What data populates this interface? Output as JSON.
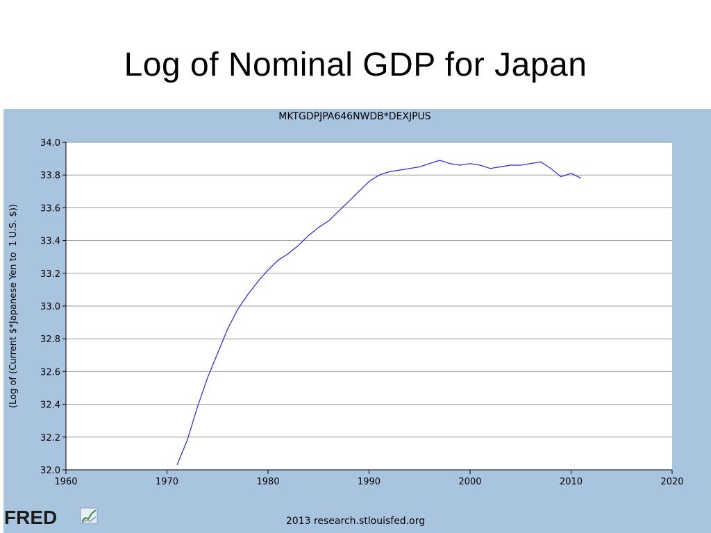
{
  "slide": {
    "title": "Log of Nominal GDP for Japan"
  },
  "branding": {
    "logo_text": "FRED",
    "logo_icon": "fred-chart-icon",
    "panel_color": "#a8c4de"
  },
  "footer": {
    "note": "2013 research.stlouisfed.org"
  },
  "chart_data": {
    "type": "line",
    "title": "MKTGDPJPA646NWDB*DEXJPUS",
    "xlabel": "",
    "ylabel": "(Log of (Current $*Japanese Yen to  1 U.S. $))",
    "xlim": [
      1960,
      2020
    ],
    "ylim": [
      32.0,
      34.0
    ],
    "xticks": [
      1960,
      1970,
      1980,
      1990,
      2000,
      2010,
      2020
    ],
    "yticks": [
      "32.0",
      "32.2",
      "32.4",
      "32.6",
      "32.8",
      "33.0",
      "33.2",
      "33.4",
      "33.6",
      "33.8",
      "34.0"
    ],
    "grid": "horizontal",
    "line_color": "#2222ee",
    "series": [
      {
        "x": [
          1971,
          1972,
          1973,
          1974,
          1975,
          1976,
          1977,
          1978,
          1979,
          1980,
          1981,
          1982,
          1983,
          1984,
          1985,
          1986,
          1987,
          1988,
          1989,
          1990,
          1991,
          1992,
          1993,
          1994,
          1995,
          1996,
          1997,
          1998,
          1999,
          2000,
          2001,
          2002,
          2003,
          2004,
          2005,
          2006,
          2007,
          2008,
          2009,
          2010,
          2011
        ],
        "y": [
          32.03,
          32.18,
          32.38,
          32.56,
          32.71,
          32.86,
          32.98,
          33.07,
          33.15,
          33.22,
          33.28,
          33.32,
          33.37,
          33.43,
          33.48,
          33.52,
          33.58,
          33.64,
          33.7,
          33.76,
          33.8,
          33.82,
          33.83,
          33.84,
          33.85,
          33.87,
          33.89,
          33.87,
          33.86,
          33.87,
          33.86,
          33.84,
          33.85,
          33.86,
          33.86,
          33.87,
          33.88,
          33.84,
          33.79,
          33.81,
          33.78
        ]
      }
    ]
  }
}
